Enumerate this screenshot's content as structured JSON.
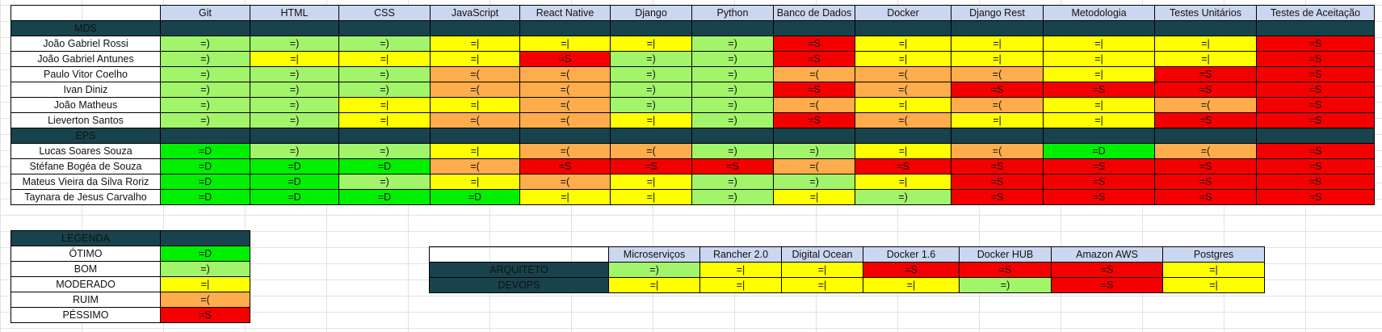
{
  "ratings": {
    "otimo": "=D",
    "bom": "=)",
    "moderado": "=|",
    "ruim": "=(",
    "pessimo": "=S"
  },
  "colors": {
    "otimo": "#00f000",
    "bom": "#a2f46a",
    "moderado": "#ffff00",
    "ruim": "#ffac4c",
    "pessimo": "#f50000",
    "header": "#cbd7f0",
    "section": "#18434d"
  },
  "skills": {
    "headers": [
      "Git",
      "HTML",
      "CSS",
      "JavaScript",
      "React Native",
      "Django",
      "Python",
      "Banco de Dados",
      "Docker",
      "Django Rest",
      "Metodologia",
      "Testes Unitários",
      "Testes de Aceitação"
    ],
    "sections": [
      {
        "title": "MDS",
        "rows": [
          {
            "name": "João Gabriel Rossi",
            "values": [
              "=)",
              "=)",
              "=)",
              "=|",
              "=|",
              "=|",
              "=)",
              "=S",
              "=|",
              "=|",
              "=|",
              "=|",
              "=S"
            ]
          },
          {
            "name": "João Gabriel Antunes",
            "values": [
              "=)",
              "=|",
              "=|",
              "=|",
              "=S",
              "=)",
              "=)",
              "=S",
              "=|",
              "=|",
              "=|",
              "=|",
              "=S"
            ]
          },
          {
            "name": "Paulo Vitor Coelho",
            "values": [
              "=)",
              "=)",
              "=)",
              "=(",
              "=(",
              "=)",
              "=)",
              "=(",
              "=(",
              "=(",
              "=|",
              "=S",
              "=S"
            ]
          },
          {
            "name": "Ivan Diniz",
            "values": [
              "=)",
              "=)",
              "=)",
              "=(",
              "=(",
              "=)",
              "=)",
              "=S",
              "=(",
              "=S",
              "=S",
              "=S",
              "=S"
            ]
          },
          {
            "name": "João Matheus",
            "values": [
              "=)",
              "=)",
              "=|",
              "=|",
              "=(",
              "=)",
              "=)",
              "=(",
              "=|",
              "=(",
              "=|",
              "=(",
              "=S"
            ]
          },
          {
            "name": "Lieverton Santos",
            "values": [
              "=)",
              "=)",
              "=|",
              "=(",
              "=(",
              "=|",
              "=)",
              "=S",
              "=(",
              "=|",
              "=|",
              "=S",
              "=S"
            ]
          }
        ]
      },
      {
        "title": "EPS",
        "rows": [
          {
            "name": "Lucas Soares Souza",
            "values": [
              "=D",
              "=)",
              "=)",
              "=|",
              "=(",
              "=(",
              "=)",
              "=)",
              "=|",
              "=(",
              "=D",
              "=(",
              "=S"
            ]
          },
          {
            "name": "Stéfane Bogéa de Souza",
            "values": [
              "=D",
              "=D",
              "=D",
              "=(",
              "=S",
              "=S",
              "=S",
              "=(",
              "=S",
              "=S",
              "=S",
              "=S",
              "=S"
            ]
          },
          {
            "name": "Mateus Vieira da Silva Roriz",
            "values": [
              "=D",
              "=D",
              "=)",
              "=|",
              "=(",
              "=|",
              "=)",
              "=)",
              "=|",
              "=S",
              "=S",
              "=S",
              "=S"
            ]
          },
          {
            "name": "Taynara de Jesus Carvalho",
            "values": [
              "=D",
              "=D",
              "=D",
              "=D",
              "=|",
              "=|",
              "=)",
              "=|",
              "=)",
              "=S",
              "=S",
              "=S",
              "=S"
            ]
          }
        ]
      }
    ]
  },
  "legend": {
    "title": "LEGENDA",
    "items": [
      {
        "label": "ÓTIMO",
        "value": "=D"
      },
      {
        "label": "BOM",
        "value": "=)"
      },
      {
        "label": "MODERADO",
        "value": "=|"
      },
      {
        "label": "RUIM",
        "value": "=("
      },
      {
        "label": "PÉSSIMO",
        "value": "=S"
      }
    ]
  },
  "tools": {
    "headers": [
      "Microserviços",
      "Rancher 2.0",
      "Digital Ocean",
      "Docker 1.6",
      "Docker HUB",
      "Amazon AWS",
      "Postgres"
    ],
    "rows": [
      {
        "name": "ARQUITETO",
        "values": [
          "=)",
          "=|",
          "=|",
          "=S",
          "=S",
          "=S",
          "=|"
        ]
      },
      {
        "name": "DEVOPS",
        "values": [
          "=|",
          "=|",
          "=|",
          "=|",
          "=)",
          "=S",
          "=|"
        ]
      }
    ]
  }
}
